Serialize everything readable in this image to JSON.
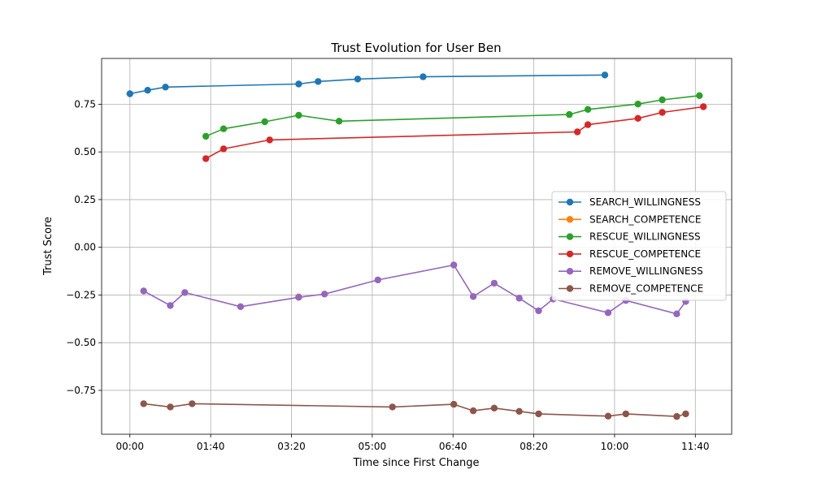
{
  "chart_data": {
    "type": "line",
    "title": "Trust Evolution for User Ben",
    "xlabel": "Time since First Change",
    "ylabel": "Trust Score",
    "x_unit": "minutes",
    "xlim": [
      -35,
      745
    ],
    "ylim": [
      -0.98,
      0.99
    ],
    "x_ticks": [
      {
        "value": 0,
        "label": "00:00"
      },
      {
        "value": 100,
        "label": "01:40"
      },
      {
        "value": 200,
        "label": "03:20"
      },
      {
        "value": 300,
        "label": "05:00"
      },
      {
        "value": 400,
        "label": "06:40"
      },
      {
        "value": 500,
        "label": "08:20"
      },
      {
        "value": 600,
        "label": "10:00"
      },
      {
        "value": 700,
        "label": "11:40"
      }
    ],
    "y_ticks": [
      {
        "value": 0.75,
        "label": "0.75"
      },
      {
        "value": 0.5,
        "label": "0.50"
      },
      {
        "value": 0.25,
        "label": "0.25"
      },
      {
        "value": 0.0,
        "label": "0.00"
      },
      {
        "value": -0.25,
        "label": "−0.25"
      },
      {
        "value": -0.5,
        "label": "−0.50"
      },
      {
        "value": -0.75,
        "label": "−0.75"
      }
    ],
    "grid": true,
    "legend_position": "center-right",
    "series": [
      {
        "name": "SEARCH_WILLINGNESS",
        "color": "#1f77b4",
        "x": [
          0,
          22,
          44,
          209,
          233,
          282,
          363,
          588
        ],
        "y": [
          0.805,
          0.823,
          0.84,
          0.856,
          0.869,
          0.882,
          0.894,
          0.903
        ]
      },
      {
        "name": "SEARCH_COMPETENCE",
        "color": "#ff7f0e",
        "x": [
          209
        ],
        "y": [
          -0.26
        ]
      },
      {
        "name": "RESCUE_WILLINGNESS",
        "color": "#2ca02c",
        "x": [
          94,
          116,
          167,
          209,
          259,
          544,
          567,
          629,
          659,
          705
        ],
        "y": [
          0.582,
          0.621,
          0.658,
          0.692,
          0.661,
          0.696,
          0.723,
          0.751,
          0.773,
          0.795
        ]
      },
      {
        "name": "RESCUE_COMPETENCE",
        "color": "#d62728",
        "x": [
          94,
          116,
          173,
          554,
          567,
          629,
          659,
          710
        ],
        "y": [
          0.465,
          0.516,
          0.563,
          0.605,
          0.643,
          0.676,
          0.707,
          0.737
        ]
      },
      {
        "name": "REMOVE_WILLINGNESS",
        "color": "#9467bd",
        "x": [
          17,
          50,
          68,
          137,
          209,
          241,
          307,
          401,
          425,
          451,
          482,
          506,
          524,
          592,
          614,
          677,
          688
        ],
        "y": [
          -0.229,
          -0.305,
          -0.237,
          -0.311,
          -0.262,
          -0.245,
          -0.171,
          -0.093,
          -0.258,
          -0.188,
          -0.267,
          -0.333,
          -0.271,
          -0.343,
          -0.279,
          -0.349,
          -0.284
        ]
      },
      {
        "name": "REMOVE_COMPETENCE",
        "color": "#8c564b",
        "x": [
          17,
          50,
          77,
          325,
          401,
          425,
          451,
          482,
          506,
          592,
          614,
          677,
          688
        ],
        "y": [
          -0.82,
          -0.837,
          -0.82,
          -0.837,
          -0.823,
          -0.857,
          -0.843,
          -0.86,
          -0.873,
          -0.885,
          -0.873,
          -0.887,
          -0.873
        ]
      }
    ]
  }
}
